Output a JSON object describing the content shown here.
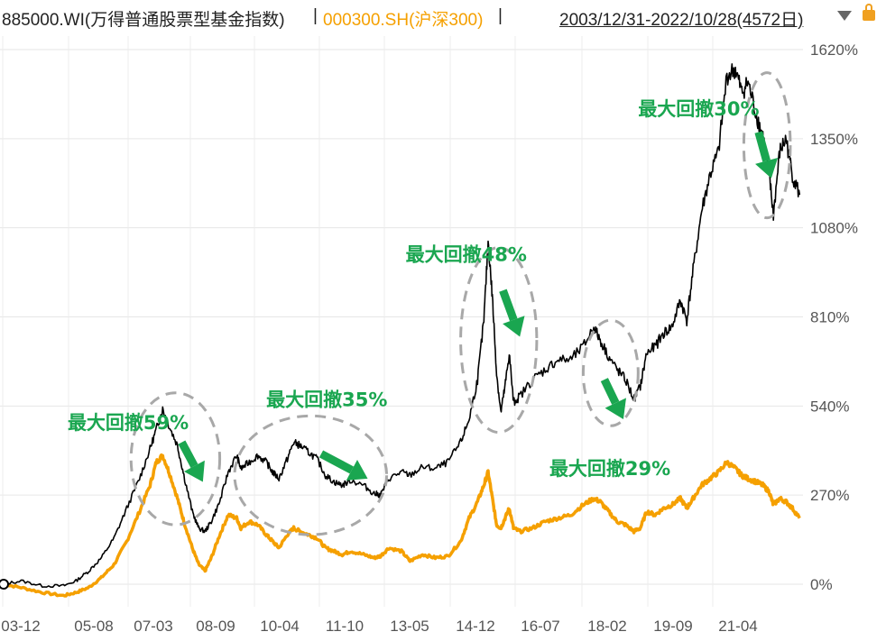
{
  "header": {
    "fund_label": "885000.WI(万得普通股票型基金指数)",
    "separator": "|",
    "index_label": "000300.SH(沪深300)",
    "index_color": "#f5a000",
    "separator2": "|",
    "date_range": "2003/12/31-2022/10/28(4572日)",
    "dropdown_icon": "triangle-down-icon",
    "lock_icon": "lock-icon"
  },
  "chart_data": {
    "type": "line",
    "x_ticks": [
      "03-12",
      "05-08",
      "07-03",
      "08-09",
      "10-04",
      "11-10",
      "13-05",
      "14-12",
      "16-07",
      "18-02",
      "19-09",
      "21-04"
    ],
    "y_ticks": [
      "0%",
      "270%",
      "540%",
      "810%",
      "1080%",
      "1350%",
      "1620%"
    ],
    "ylim": [
      -50,
      1650
    ],
    "xlim": [
      2003.9,
      2022.9
    ],
    "grid": true,
    "series": [
      {
        "name": "885000.WI(万得普通股票型基金指数)",
        "color": "#000000",
        "points": [
          [
            2003.95,
            0
          ],
          [
            2004.4,
            10
          ],
          [
            2004.9,
            -5
          ],
          [
            2005.4,
            -5
          ],
          [
            2005.7,
            10
          ],
          [
            2006.0,
            40
          ],
          [
            2006.3,
            80
          ],
          [
            2006.6,
            140
          ],
          [
            2006.9,
            230
          ],
          [
            2007.2,
            320
          ],
          [
            2007.45,
            410
          ],
          [
            2007.6,
            470
          ],
          [
            2007.75,
            530
          ],
          [
            2007.9,
            480
          ],
          [
            2008.1,
            420
          ],
          [
            2008.25,
            330
          ],
          [
            2008.45,
            220
          ],
          [
            2008.6,
            170
          ],
          [
            2008.75,
            160
          ],
          [
            2008.9,
            190
          ],
          [
            2009.1,
            250
          ],
          [
            2009.3,
            340
          ],
          [
            2009.5,
            390
          ],
          [
            2009.6,
            350
          ],
          [
            2009.8,
            370
          ],
          [
            2010.0,
            390
          ],
          [
            2010.2,
            370
          ],
          [
            2010.35,
            340
          ],
          [
            2010.5,
            320
          ],
          [
            2010.7,
            380
          ],
          [
            2010.85,
            430
          ],
          [
            2011.0,
            420
          ],
          [
            2011.2,
            400
          ],
          [
            2011.4,
            380
          ],
          [
            2011.6,
            330
          ],
          [
            2011.8,
            310
          ],
          [
            2012.0,
            300
          ],
          [
            2012.2,
            315
          ],
          [
            2012.5,
            300
          ],
          [
            2012.75,
            275
          ],
          [
            2012.9,
            270
          ],
          [
            2013.1,
            320
          ],
          [
            2013.4,
            340
          ],
          [
            2013.6,
            330
          ],
          [
            2013.9,
            355
          ],
          [
            2014.2,
            350
          ],
          [
            2014.5,
            370
          ],
          [
            2014.8,
            430
          ],
          [
            2015.0,
            500
          ],
          [
            2015.2,
            620
          ],
          [
            2015.35,
            800
          ],
          [
            2015.45,
            1040
          ],
          [
            2015.55,
            870
          ],
          [
            2015.65,
            640
          ],
          [
            2015.75,
            520
          ],
          [
            2015.85,
            600
          ],
          [
            2015.95,
            700
          ],
          [
            2016.05,
            550
          ],
          [
            2016.2,
            570
          ],
          [
            2016.5,
            620
          ],
          [
            2016.8,
            650
          ],
          [
            2017.1,
            680
          ],
          [
            2017.4,
            680
          ],
          [
            2017.7,
            720
          ],
          [
            2017.95,
            780
          ],
          [
            2018.1,
            740
          ],
          [
            2018.3,
            690
          ],
          [
            2018.5,
            650
          ],
          [
            2018.7,
            620
          ],
          [
            2018.9,
            560
          ],
          [
            2019.05,
            600
          ],
          [
            2019.2,
            700
          ],
          [
            2019.4,
            720
          ],
          [
            2019.6,
            760
          ],
          [
            2019.8,
            780
          ],
          [
            2020.0,
            860
          ],
          [
            2020.15,
            800
          ],
          [
            2020.3,
            950
          ],
          [
            2020.5,
            1130
          ],
          [
            2020.7,
            1240
          ],
          [
            2020.9,
            1310
          ],
          [
            2021.1,
            1540
          ],
          [
            2021.3,
            1560
          ],
          [
            2021.45,
            1490
          ],
          [
            2021.6,
            1520
          ],
          [
            2021.8,
            1420
          ],
          [
            2021.95,
            1360
          ],
          [
            2022.1,
            1240
          ],
          [
            2022.2,
            1120
          ],
          [
            2022.35,
            1310
          ],
          [
            2022.5,
            1350
          ],
          [
            2022.65,
            1240
          ],
          [
            2022.82,
            1180
          ]
        ]
      },
      {
        "name": "000300.SH(沪深300)",
        "color": "#f5a000",
        "points": [
          [
            2003.95,
            0
          ],
          [
            2004.4,
            -10
          ],
          [
            2004.9,
            -25
          ],
          [
            2005.4,
            -35
          ],
          [
            2005.7,
            -25
          ],
          [
            2006.0,
            -10
          ],
          [
            2006.3,
            20
          ],
          [
            2006.6,
            60
          ],
          [
            2006.9,
            130
          ],
          [
            2007.2,
            220
          ],
          [
            2007.45,
            300
          ],
          [
            2007.6,
            370
          ],
          [
            2007.75,
            390
          ],
          [
            2007.9,
            340
          ],
          [
            2008.1,
            260
          ],
          [
            2008.25,
            190
          ],
          [
            2008.45,
            110
          ],
          [
            2008.6,
            60
          ],
          [
            2008.75,
            40
          ],
          [
            2008.9,
            80
          ],
          [
            2009.1,
            150
          ],
          [
            2009.3,
            210
          ],
          [
            2009.5,
            200
          ],
          [
            2009.6,
            170
          ],
          [
            2009.8,
            190
          ],
          [
            2010.0,
            180
          ],
          [
            2010.2,
            150
          ],
          [
            2010.35,
            130
          ],
          [
            2010.5,
            110
          ],
          [
            2010.7,
            150
          ],
          [
            2010.85,
            170
          ],
          [
            2011.0,
            160
          ],
          [
            2011.2,
            150
          ],
          [
            2011.4,
            140
          ],
          [
            2011.6,
            110
          ],
          [
            2011.8,
            100
          ],
          [
            2012.0,
            90
          ],
          [
            2012.2,
            100
          ],
          [
            2012.5,
            90
          ],
          [
            2012.75,
            80
          ],
          [
            2012.9,
            85
          ],
          [
            2013.1,
            110
          ],
          [
            2013.4,
            100
          ],
          [
            2013.6,
            70
          ],
          [
            2013.9,
            90
          ],
          [
            2014.2,
            80
          ],
          [
            2014.5,
            85
          ],
          [
            2014.8,
            130
          ],
          [
            2015.0,
            200
          ],
          [
            2015.2,
            250
          ],
          [
            2015.35,
            300
          ],
          [
            2015.45,
            340
          ],
          [
            2015.55,
            260
          ],
          [
            2015.65,
            180
          ],
          [
            2015.75,
            170
          ],
          [
            2015.85,
            200
          ],
          [
            2015.95,
            230
          ],
          [
            2016.05,
            170
          ],
          [
            2016.2,
            160
          ],
          [
            2016.5,
            170
          ],
          [
            2016.8,
            190
          ],
          [
            2017.1,
            200
          ],
          [
            2017.4,
            210
          ],
          [
            2017.7,
            240
          ],
          [
            2017.95,
            260
          ],
          [
            2018.1,
            250
          ],
          [
            2018.3,
            220
          ],
          [
            2018.5,
            190
          ],
          [
            2018.7,
            180
          ],
          [
            2018.9,
            160
          ],
          [
            2019.05,
            170
          ],
          [
            2019.2,
            220
          ],
          [
            2019.4,
            210
          ],
          [
            2019.6,
            230
          ],
          [
            2019.8,
            240
          ],
          [
            2020.0,
            260
          ],
          [
            2020.15,
            230
          ],
          [
            2020.3,
            260
          ],
          [
            2020.5,
            300
          ],
          [
            2020.7,
            320
          ],
          [
            2020.9,
            340
          ],
          [
            2021.1,
            370
          ],
          [
            2021.3,
            350
          ],
          [
            2021.45,
            330
          ],
          [
            2021.6,
            320
          ],
          [
            2021.8,
            310
          ],
          [
            2021.95,
            300
          ],
          [
            2022.1,
            280
          ],
          [
            2022.2,
            240
          ],
          [
            2022.35,
            260
          ],
          [
            2022.5,
            250
          ],
          [
            2022.65,
            230
          ],
          [
            2022.82,
            200
          ]
        ]
      }
    ],
    "annotations": [
      {
        "label": "最大回撤59%",
        "x": 2005.5,
        "y": 470,
        "ellipse": {
          "cx": 2008.05,
          "cy": 380,
          "rx": 1.05,
          "ry": 200
        },
        "arrow": {
          "from": [
            2008.2,
            430
          ],
          "to": [
            2008.7,
            310
          ]
        }
      },
      {
        "label": "最大回撤35%",
        "x": 2010.2,
        "y": 540,
        "ellipse": {
          "cx": 2011.25,
          "cy": 330,
          "rx": 1.8,
          "ry": 180
        },
        "arrow": {
          "from": [
            2011.5,
            395
          ],
          "to": [
            2012.6,
            320
          ]
        }
      },
      {
        "label": "最大回撤48%",
        "x": 2013.5,
        "y": 980,
        "ellipse": {
          "cx": 2015.7,
          "cy": 740,
          "rx": 0.9,
          "ry": 280
        },
        "arrow": {
          "from": [
            2015.8,
            890
          ],
          "to": [
            2016.2,
            750
          ]
        }
      },
      {
        "label": "最大回撤29%",
        "x": 2016.9,
        "y": 330,
        "ellipse": {
          "cx": 2018.35,
          "cy": 640,
          "rx": 0.65,
          "ry": 160
        },
        "arrow": {
          "from": [
            2018.2,
            620
          ],
          "to": [
            2018.65,
            500
          ]
        }
      },
      {
        "label": "最大回撤30%",
        "x": 2019.0,
        "y": 1420,
        "ellipse": {
          "cx": 2022.05,
          "cy": 1330,
          "rx": 0.55,
          "ry": 220
        },
        "arrow": {
          "from": [
            2021.85,
            1370
          ],
          "to": [
            2022.15,
            1230
          ]
        }
      }
    ]
  }
}
